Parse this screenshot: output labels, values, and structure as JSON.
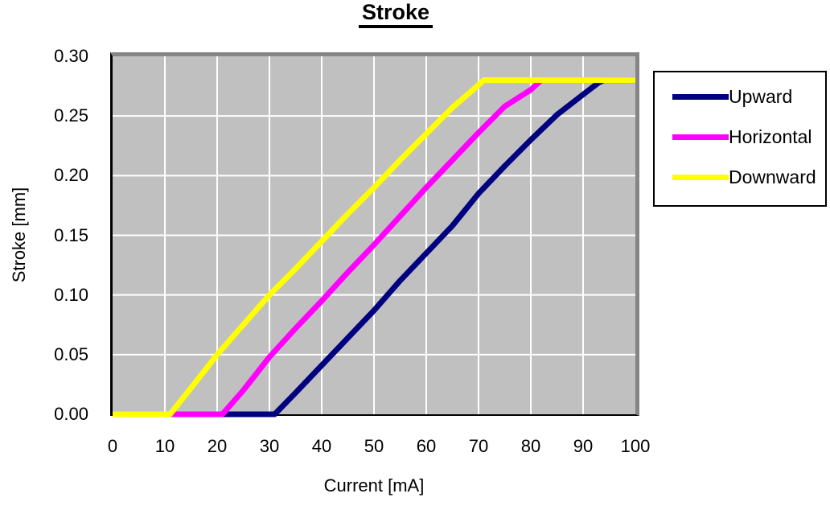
{
  "chart_data": {
    "type": "line",
    "title": "Stroke",
    "xlabel": "Current [mA]",
    "ylabel": "Stroke [mm]",
    "xlim": [
      0,
      100
    ],
    "ylim": [
      0,
      0.3
    ],
    "x_ticks": [
      0,
      10,
      20,
      30,
      40,
      50,
      60,
      70,
      80,
      90,
      100
    ],
    "y_tick_labels": [
      "0.30",
      "0.25",
      "0.20",
      "0.15",
      "0.10",
      "0.05",
      "0.00"
    ],
    "y_gridlines": [
      0.05,
      0.1,
      0.15,
      0.2,
      0.25
    ],
    "grid": true,
    "legend_position": "right-outside",
    "colors": {
      "plot_background": "#c0c0c0",
      "gridline": "#ffffff",
      "plot_border_shadow": "#858585",
      "axis": "#000000",
      "text": "#000000"
    },
    "series": [
      {
        "name": "Upward",
        "color": "#000080",
        "points": [
          [
            0,
            0
          ],
          [
            10,
            0
          ],
          [
            20,
            0
          ],
          [
            30,
            0
          ],
          [
            31,
            0
          ],
          [
            35,
            0.018
          ],
          [
            40,
            0.041
          ],
          [
            45,
            0.064
          ],
          [
            50,
            0.087
          ],
          [
            55,
            0.112
          ],
          [
            60,
            0.135
          ],
          [
            65,
            0.158
          ],
          [
            70,
            0.185
          ],
          [
            75,
            0.208
          ],
          [
            80,
            0.23
          ],
          [
            85,
            0.251
          ],
          [
            90,
            0.268
          ],
          [
            93,
            0.278
          ],
          [
            94,
            0.28
          ],
          [
            100,
            0.28
          ]
        ]
      },
      {
        "name": "Horizontal",
        "color": "#ff00ff",
        "points": [
          [
            0,
            0
          ],
          [
            10,
            0
          ],
          [
            20,
            0
          ],
          [
            21,
            0
          ],
          [
            25,
            0.02
          ],
          [
            30,
            0.048
          ],
          [
            35,
            0.072
          ],
          [
            40,
            0.095
          ],
          [
            45,
            0.119
          ],
          [
            50,
            0.142
          ],
          [
            55,
            0.166
          ],
          [
            60,
            0.19
          ],
          [
            65,
            0.213
          ],
          [
            70,
            0.236
          ],
          [
            75,
            0.258
          ],
          [
            80,
            0.272
          ],
          [
            82,
            0.28
          ],
          [
            90,
            0.28
          ],
          [
            100,
            0.28
          ]
        ]
      },
      {
        "name": "Downward",
        "color": "#ffff00",
        "points": [
          [
            0,
            0
          ],
          [
            10,
            0
          ],
          [
            11,
            0
          ],
          [
            15,
            0.022
          ],
          [
            20,
            0.05
          ],
          [
            25,
            0.075
          ],
          [
            30,
            0.1
          ],
          [
            35,
            0.122
          ],
          [
            40,
            0.145
          ],
          [
            45,
            0.168
          ],
          [
            50,
            0.19
          ],
          [
            55,
            0.213
          ],
          [
            60,
            0.235
          ],
          [
            65,
            0.257
          ],
          [
            70,
            0.276
          ],
          [
            71,
            0.28
          ],
          [
            80,
            0.28
          ],
          [
            90,
            0.28
          ],
          [
            100,
            0.28
          ]
        ]
      }
    ]
  }
}
